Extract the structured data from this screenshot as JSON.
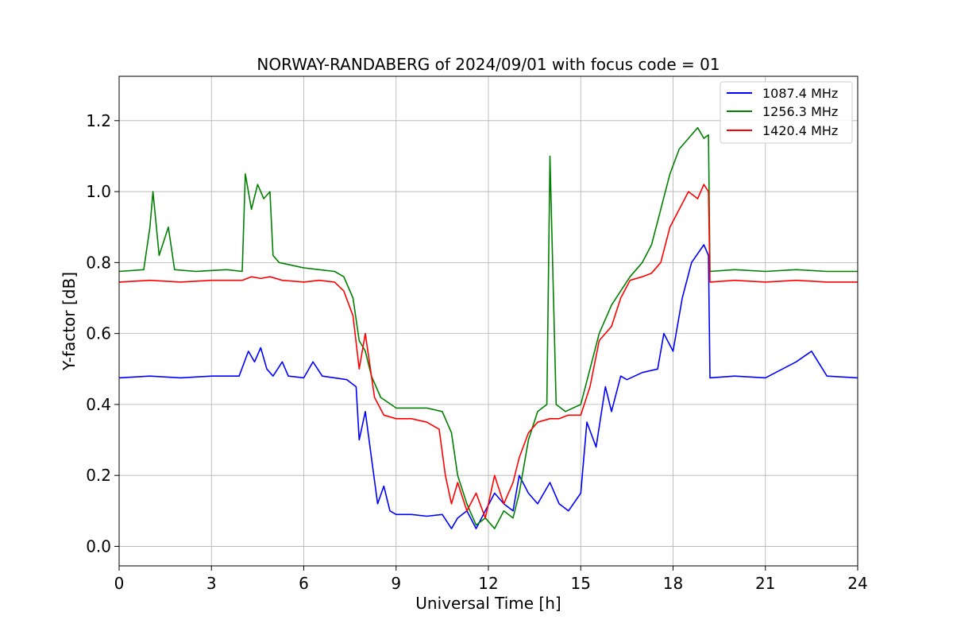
{
  "chart_data": {
    "type": "line",
    "title": "NORWAY-RANDABERG of 2024/09/01 with focus code = 01",
    "xlabel": "Universal Time [h]",
    "ylabel": "Y-factor [dB]",
    "xlim": [
      0,
      24
    ],
    "ylim": [
      -0.055,
      1.325
    ],
    "xticks": [
      "0",
      "3",
      "6",
      "9",
      "12",
      "15",
      "18",
      "21",
      "24"
    ],
    "yticks": [
      "0.0",
      "0.2",
      "0.4",
      "0.6",
      "0.8",
      "1.0",
      "1.2"
    ],
    "grid": true,
    "legend_position": "top-right",
    "series": [
      {
        "name": "1087.4 MHz",
        "color": "#0000ff",
        "x": [
          0,
          1,
          2,
          3,
          3.9,
          4.2,
          4.4,
          4.6,
          4.8,
          5.0,
          5.3,
          5.5,
          6.0,
          6.3,
          6.6,
          7.0,
          7.4,
          7.7,
          7.8,
          8.0,
          8.2,
          8.4,
          8.6,
          8.8,
          9.0,
          9.5,
          10.0,
          10.5,
          10.8,
          11.0,
          11.3,
          11.6,
          11.9,
          12.2,
          12.5,
          12.8,
          13.0,
          13.3,
          13.6,
          14.0,
          14.3,
          14.6,
          15.0,
          15.2,
          15.5,
          15.8,
          16.0,
          16.3,
          16.5,
          17.0,
          17.5,
          17.7,
          18.0,
          18.3,
          18.6,
          19.0,
          19.15,
          19.2,
          20,
          21,
          22,
          22.5,
          23,
          24
        ],
        "y": [
          0.475,
          0.48,
          0.475,
          0.48,
          0.48,
          0.55,
          0.52,
          0.56,
          0.5,
          0.48,
          0.52,
          0.48,
          0.475,
          0.52,
          0.48,
          0.475,
          0.47,
          0.45,
          0.3,
          0.38,
          0.25,
          0.12,
          0.17,
          0.1,
          0.09,
          0.09,
          0.085,
          0.09,
          0.05,
          0.08,
          0.1,
          0.05,
          0.1,
          0.15,
          0.12,
          0.1,
          0.2,
          0.15,
          0.12,
          0.18,
          0.12,
          0.1,
          0.15,
          0.35,
          0.28,
          0.45,
          0.38,
          0.48,
          0.47,
          0.49,
          0.5,
          0.6,
          0.55,
          0.7,
          0.8,
          0.85,
          0.82,
          0.475,
          0.48,
          0.475,
          0.52,
          0.55,
          0.48,
          0.475
        ]
      },
      {
        "name": "1256.3 MHz",
        "color": "#008000",
        "x": [
          0,
          0.8,
          1.0,
          1.1,
          1.3,
          1.6,
          1.8,
          2.5,
          3.5,
          4.0,
          4.1,
          4.3,
          4.5,
          4.7,
          4.9,
          5.0,
          5.2,
          6.0,
          6.5,
          7.0,
          7.3,
          7.6,
          7.8,
          8.0,
          8.2,
          8.5,
          9.0,
          9.5,
          10.0,
          10.5,
          10.8,
          11.0,
          11.3,
          11.6,
          11.9,
          12.2,
          12.5,
          12.8,
          13.0,
          13.3,
          13.6,
          13.9,
          14.0,
          14.2,
          14.5,
          15.0,
          15.3,
          15.6,
          16.0,
          16.3,
          16.6,
          17.0,
          17.3,
          17.6,
          17.9,
          18.2,
          18.5,
          18.8,
          19.0,
          19.15,
          19.2,
          20,
          21,
          22,
          23,
          24
        ],
        "y": [
          0.775,
          0.78,
          0.9,
          1.0,
          0.82,
          0.9,
          0.78,
          0.775,
          0.78,
          0.775,
          1.05,
          0.95,
          1.02,
          0.98,
          1.0,
          0.82,
          0.8,
          0.785,
          0.78,
          0.775,
          0.76,
          0.7,
          0.58,
          0.55,
          0.48,
          0.42,
          0.39,
          0.39,
          0.39,
          0.38,
          0.32,
          0.2,
          0.12,
          0.06,
          0.08,
          0.05,
          0.1,
          0.08,
          0.15,
          0.3,
          0.38,
          0.4,
          1.1,
          0.4,
          0.38,
          0.4,
          0.5,
          0.6,
          0.68,
          0.72,
          0.76,
          0.8,
          0.85,
          0.95,
          1.05,
          1.12,
          1.15,
          1.18,
          1.15,
          1.16,
          0.775,
          0.78,
          0.775,
          0.78,
          0.775,
          0.775
        ]
      },
      {
        "name": "1420.4 MHz",
        "color": "#ff0000",
        "x": [
          0,
          1,
          2,
          3,
          4.0,
          4.3,
          4.6,
          4.9,
          5.3,
          6,
          6.5,
          7.0,
          7.3,
          7.6,
          7.8,
          8.0,
          8.3,
          8.6,
          9.0,
          9.5,
          10.0,
          10.4,
          10.6,
          10.8,
          11.0,
          11.3,
          11.6,
          11.9,
          12.2,
          12.5,
          12.8,
          13.0,
          13.3,
          13.6,
          14.0,
          14.3,
          14.6,
          15.0,
          15.3,
          15.6,
          16.0,
          16.3,
          16.6,
          17.0,
          17.3,
          17.6,
          17.9,
          18.2,
          18.5,
          18.8,
          19.0,
          19.15,
          19.2,
          20,
          21,
          22,
          23,
          24
        ],
        "y": [
          0.745,
          0.75,
          0.745,
          0.75,
          0.75,
          0.76,
          0.755,
          0.76,
          0.75,
          0.745,
          0.75,
          0.745,
          0.72,
          0.65,
          0.5,
          0.6,
          0.42,
          0.37,
          0.36,
          0.36,
          0.35,
          0.33,
          0.2,
          0.12,
          0.18,
          0.1,
          0.15,
          0.08,
          0.2,
          0.12,
          0.18,
          0.25,
          0.32,
          0.35,
          0.36,
          0.36,
          0.37,
          0.37,
          0.45,
          0.58,
          0.62,
          0.7,
          0.75,
          0.76,
          0.77,
          0.8,
          0.9,
          0.95,
          1.0,
          0.98,
          1.02,
          1.0,
          0.745,
          0.75,
          0.745,
          0.75,
          0.745,
          0.745
        ]
      }
    ]
  }
}
